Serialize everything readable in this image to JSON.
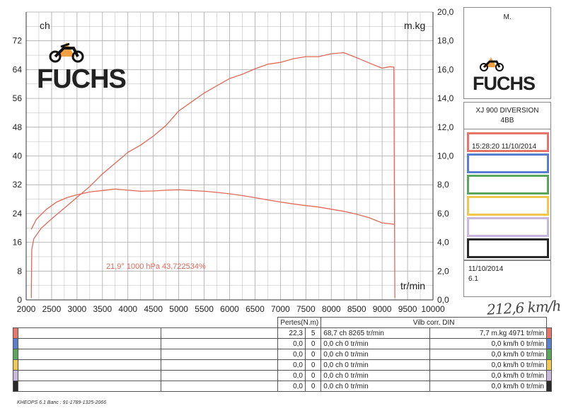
{
  "chart_data": {
    "type": "line",
    "x_unit_label": "tr/min",
    "y_left_unit": "ch",
    "y_right_unit": "m.kg",
    "xlim": [
      2000,
      10000
    ],
    "ylim_left": [
      0,
      80
    ],
    "ylim_right": [
      0,
      20
    ],
    "x_ticks": [
      "2000",
      "2500",
      "3000",
      "3500",
      "4000",
      "4500",
      "5000",
      "5500",
      "6000",
      "6500",
      "7000",
      "7500",
      "8000",
      "8500",
      "9000",
      "9500",
      "10000"
    ],
    "y_left_ticks": [
      "0",
      "8",
      "16",
      "24",
      "32",
      "40",
      "48",
      "56",
      "64",
      "72"
    ],
    "y_right_ticks": [
      "0,0",
      "2,0",
      "4,0",
      "6,0",
      "8,0",
      "10,0",
      "12,0",
      "14,0",
      "16,0",
      "18,0",
      "20,0"
    ],
    "annotation": "21,9°  1000 hPa  43,722534%",
    "series": [
      {
        "axis": "left",
        "color": "#e06a5a",
        "points": [
          [
            2100,
            0.5
          ],
          [
            2110,
            14
          ],
          [
            2150,
            17
          ],
          [
            2300,
            20
          ],
          [
            2500,
            22.5
          ],
          [
            2750,
            25.5
          ],
          [
            3000,
            28.5
          ],
          [
            3250,
            31.5
          ],
          [
            3500,
            35
          ],
          [
            3750,
            38
          ],
          [
            4000,
            41
          ],
          [
            4250,
            43
          ],
          [
            4500,
            45.5
          ],
          [
            4750,
            48.5
          ],
          [
            5000,
            52.5
          ],
          [
            5250,
            55
          ],
          [
            5500,
            57.5
          ],
          [
            5750,
            59.5
          ],
          [
            6000,
            61.5
          ],
          [
            6250,
            62.7
          ],
          [
            6500,
            64.2
          ],
          [
            6750,
            65.5
          ],
          [
            7000,
            66
          ],
          [
            7250,
            67
          ],
          [
            7500,
            67.6
          ],
          [
            7750,
            67.6
          ],
          [
            8000,
            68.4
          ],
          [
            8250,
            68.7
          ],
          [
            8500,
            67.3
          ],
          [
            8750,
            65.8
          ],
          [
            9000,
            64.4
          ],
          [
            9150,
            64.8
          ],
          [
            9230,
            64.7
          ],
          [
            9250,
            0.5
          ]
        ]
      },
      {
        "axis": "right",
        "color": "#e06a5a",
        "points": [
          [
            2100,
            4.9
          ],
          [
            2200,
            5.6
          ],
          [
            2400,
            6.3
          ],
          [
            2600,
            6.8
          ],
          [
            2800,
            7.1
          ],
          [
            3000,
            7.3
          ],
          [
            3250,
            7.5
          ],
          [
            3500,
            7.6
          ],
          [
            3750,
            7.7
          ],
          [
            4000,
            7.62
          ],
          [
            4250,
            7.55
          ],
          [
            4500,
            7.57
          ],
          [
            4750,
            7.62
          ],
          [
            5000,
            7.65
          ],
          [
            5250,
            7.6
          ],
          [
            5500,
            7.55
          ],
          [
            5750,
            7.47
          ],
          [
            6000,
            7.37
          ],
          [
            6250,
            7.25
          ],
          [
            6500,
            7.1
          ],
          [
            6750,
            6.95
          ],
          [
            7000,
            6.8
          ],
          [
            7250,
            6.67
          ],
          [
            7500,
            6.55
          ],
          [
            7750,
            6.45
          ],
          [
            8000,
            6.3
          ],
          [
            8250,
            6.15
          ],
          [
            8500,
            5.95
          ],
          [
            8750,
            5.7
          ],
          [
            9000,
            5.35
          ],
          [
            9250,
            5.25
          ]
        ]
      }
    ]
  },
  "colors": {
    "curve": "#e06a5a",
    "grid": "#a8a8a8",
    "run_colors": [
      "#e8746a",
      "#5b7fd0",
      "#5aa65a",
      "#f0c850",
      "#c8b8e0",
      "#2a2a2a"
    ]
  },
  "sidebar": {
    "client": "M.",
    "logo_word": "FUCHS",
    "bike_model": "XJ 900 DIVERSION",
    "bike_code": "4BB",
    "run_label": "15:28:20  11/10/2014",
    "date": "11/10/2014",
    "version": "6.1"
  },
  "chart_logo_word": "FUCHS",
  "handwritten_note": "212,6 km/h",
  "table": {
    "header_pertes": "Pertes(N.m)",
    "header_vilb": "Vilb corr. DIN",
    "rows": [
      {
        "a": "22,3",
        "b": "5",
        "power": "68,7 ch 8265 tr/min",
        "torque": "7,7 m.kg 4971 tr/min"
      },
      {
        "a": "0,0",
        "b": "0",
        "power": "0,0 ch 0 tr/min",
        "torque": "0,0 km/h 0 tr/min"
      },
      {
        "a": "0,0",
        "b": "0",
        "power": "0,0 ch 0 tr/min",
        "torque": "0,0 km/h 0 tr/min"
      },
      {
        "a": "0,0",
        "b": "0",
        "power": "0,0 ch 0 tr/min",
        "torque": "0,0 km/h 0 tr/min"
      },
      {
        "a": "0,0",
        "b": "0",
        "power": "0,0 ch 0 tr/min",
        "torque": "0,0 km/h 0 tr/min"
      },
      {
        "a": "0,0",
        "b": "0",
        "power": "0,0 ch 0 tr/min",
        "torque": "0,0 km/h 0 tr/min"
      }
    ]
  },
  "footer": "KHEOPS 6.1  Banc : 91-1789-1325-2066"
}
